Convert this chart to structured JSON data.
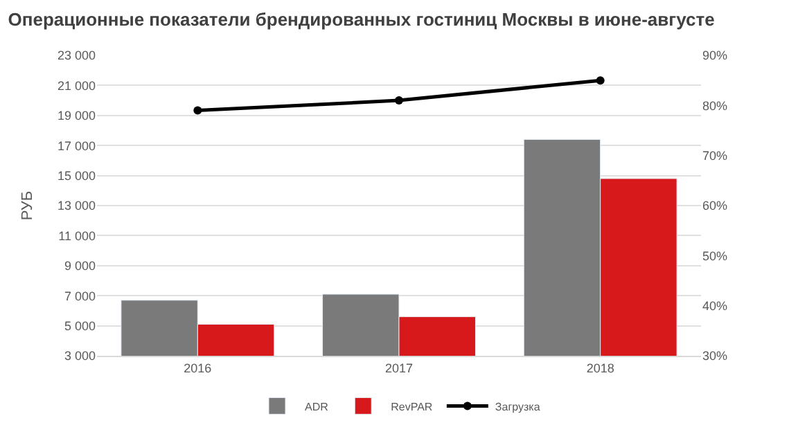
{
  "chart_data": {
    "type": "bar",
    "title": "Операционные показатели брендированных гостиниц Москвы в июне-августе",
    "ylabel": "РУБ",
    "categories": [
      "2016",
      "2017",
      "2018"
    ],
    "series": [
      {
        "name": "ADR",
        "color": "#7a7a7a",
        "values": [
          6700,
          7100,
          17400
        ]
      },
      {
        "name": "RevPAR",
        "color": "#d7191c",
        "values": [
          5100,
          5600,
          14800
        ]
      },
      {
        "name": "Загрузка",
        "color": "#000000",
        "type": "line",
        "axis": "y2",
        "marker": "circle",
        "values": [
          79,
          81,
          85
        ]
      }
    ],
    "ylim": [
      3000,
      23000
    ],
    "yticks": [
      {
        "value": 3000,
        "label": "3 000"
      },
      {
        "value": 5000,
        "label": "5 000"
      },
      {
        "value": 7000,
        "label": "7 000"
      },
      {
        "value": 9000,
        "label": "9 000"
      },
      {
        "value": 11000,
        "label": "11 000"
      },
      {
        "value": 13000,
        "label": "13 000"
      },
      {
        "value": 15000,
        "label": "15 000"
      },
      {
        "value": 17000,
        "label": "17 000"
      },
      {
        "value": 19000,
        "label": "19 000"
      },
      {
        "value": 21000,
        "label": "21 000"
      },
      {
        "value": 23000,
        "label": "23 000"
      }
    ],
    "y2lim": [
      30,
      90
    ],
    "y2ticks": [
      {
        "value": 30,
        "label": "30%"
      },
      {
        "value": 40,
        "label": "40%"
      },
      {
        "value": 50,
        "label": "50%"
      },
      {
        "value": 60,
        "label": "60%"
      },
      {
        "value": 70,
        "label": "70%"
      },
      {
        "value": 80,
        "label": "80%"
      },
      {
        "value": 90,
        "label": "90%"
      }
    ],
    "grid": "y",
    "legend": "bottom"
  }
}
